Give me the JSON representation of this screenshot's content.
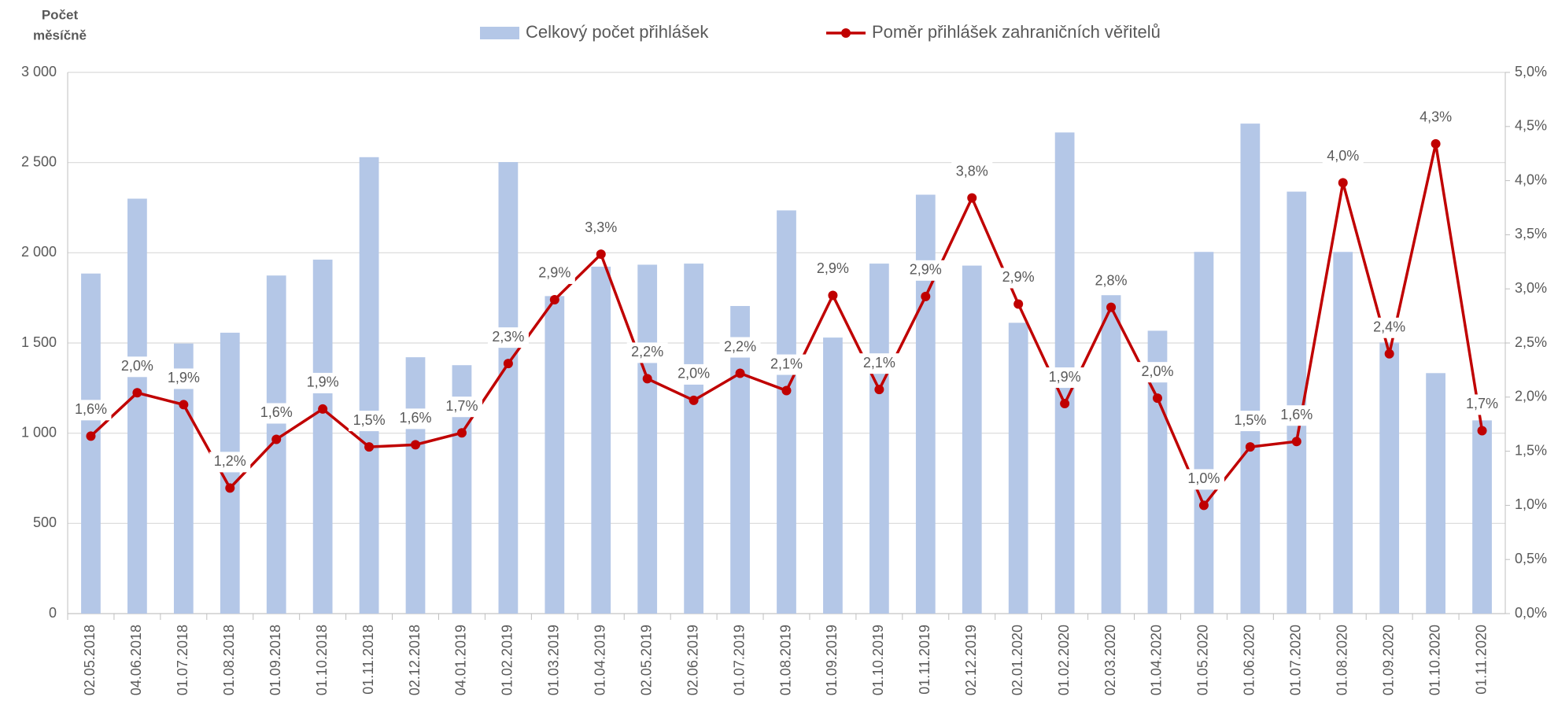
{
  "chart_data": {
    "type": "bar",
    "y_label": [
      "Počet",
      "měsíčně"
    ],
    "categories": [
      "02.05.2018",
      "04.06.2018",
      "01.07.2018",
      "01.08.2018",
      "01.09.2018",
      "01.10.2018",
      "01.11.2018",
      "02.12.2018",
      "04.01.2019",
      "01.02.2019",
      "01.03.2019",
      "01.04.2019",
      "02.05.2019",
      "02.06.2019",
      "01.07.2019",
      "01.08.2019",
      "01.09.2019",
      "01.10.2019",
      "01.11.2019",
      "02.12.2019",
      "02.01.2020",
      "01.02.2020",
      "02.03.2020",
      "01.04.2020",
      "01.05.2020",
      "01.06.2020",
      "01.07.2020",
      "01.08.2020",
      "01.09.2020",
      "01.10.2020",
      "01.11.2020"
    ],
    "series": [
      {
        "name": "Celkový počet přihlášek",
        "color": "#b4c7e7",
        "type": "bar",
        "values": [
          1885,
          2300,
          1497,
          1557,
          1874,
          1962,
          2530,
          1421,
          1377,
          2503,
          1760,
          1923,
          1934,
          1940,
          1705,
          2235,
          1530,
          1940,
          2322,
          1929,
          1612,
          2667,
          1765,
          1568,
          2005,
          2716,
          2339,
          2005,
          1503,
          1333,
          1071
        ]
      },
      {
        "name": "Poměr přihlášek zahraničních věřitelů",
        "color": "#c00000",
        "type": "line",
        "axis": "y2",
        "values": [
          1.64,
          2.04,
          1.93,
          1.16,
          1.61,
          1.89,
          1.54,
          1.56,
          1.67,
          2.31,
          2.9,
          3.32,
          2.17,
          1.97,
          2.22,
          2.06,
          2.94,
          2.07,
          2.93,
          3.84,
          2.86,
          1.94,
          2.83,
          1.99,
          1.0,
          1.54,
          1.59,
          3.98,
          2.4,
          4.34,
          1.69
        ],
        "value_labels": [
          "1,6%",
          "2,0%",
          "1,9%",
          "1,2%",
          "1,6%",
          "1,9%",
          "1,5%",
          "1,6%",
          "1,7%",
          "2,3%",
          "2,9%",
          "3,3%",
          "2,2%",
          "2,0%",
          "2,2%",
          "2,1%",
          "2,9%",
          "2,1%",
          "2,9%",
          "3,8%",
          "2,9%",
          "1,9%",
          "2,8%",
          "2,0%",
          "1,0%",
          "1,5%",
          "1,6%",
          "4,0%",
          "2,4%",
          "4,3%",
          "1,7%"
        ]
      }
    ],
    "ylim": [
      0,
      3000
    ],
    "yticks": [
      0,
      500,
      {
        "value": 1000,
        "label": "1 000"
      },
      {
        "value": 1500,
        "label": "1 500"
      },
      {
        "value": 2000,
        "label": "2 000"
      },
      {
        "value": 2500,
        "label": "2 500"
      },
      {
        "value": 3000,
        "label": "3 000"
      }
    ],
    "y2lim": [
      0,
      5
    ],
    "y2ticks": [
      {
        "value": 0,
        "label": "0,0%"
      },
      {
        "value": 0.5,
        "label": "0,5%"
      },
      {
        "value": 1,
        "label": "1,0%"
      },
      {
        "value": 1.5,
        "label": "1,5%"
      },
      {
        "value": 2,
        "label": "2,0%"
      },
      {
        "value": 2.5,
        "label": "2,5%"
      },
      {
        "value": 3,
        "label": "3,0%"
      },
      {
        "value": 3.5,
        "label": "3,5%"
      },
      {
        "value": 4,
        "label": "4,0%"
      },
      {
        "value": 4.5,
        "label": "4,5%"
      },
      {
        "value": 5,
        "label": "5,0%"
      }
    ],
    "grid": true,
    "legend": "top"
  }
}
